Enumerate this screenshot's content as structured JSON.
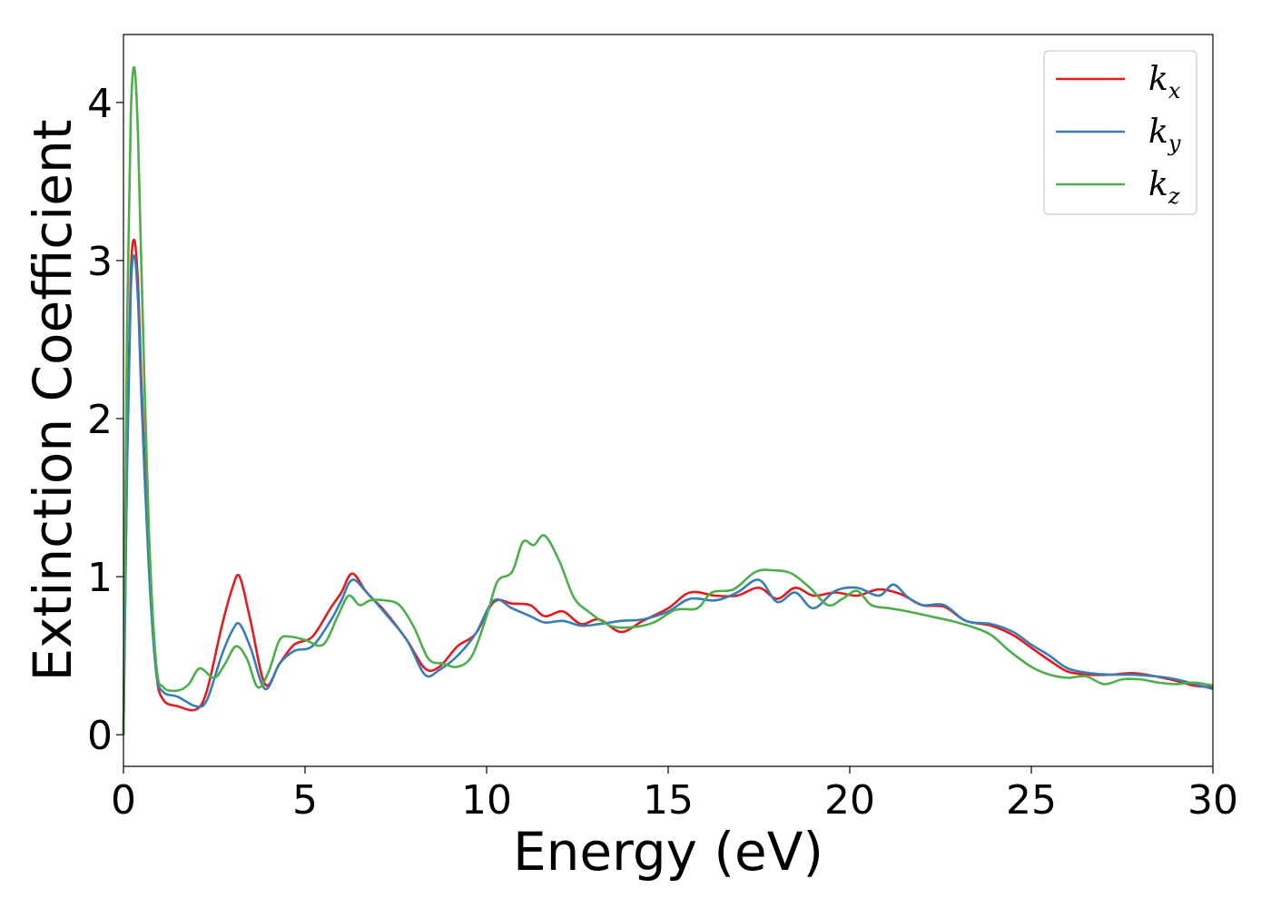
{
  "chart_data": {
    "type": "line",
    "title": "",
    "xlabel": "Energy (eV)",
    "ylabel": "Extinction Coefficient",
    "xlim": [
      0,
      30
    ],
    "ylim": [
      -0.2,
      4.43
    ],
    "xticks": [
      0,
      5,
      10,
      15,
      20,
      25,
      30
    ],
    "xtick_labels": [
      "0",
      "5",
      "10",
      "15",
      "20",
      "25",
      "30"
    ],
    "yticks": [
      0,
      1,
      2,
      3,
      4
    ],
    "ytick_labels": [
      "0",
      "1",
      "2",
      "3",
      "4"
    ],
    "grid": false,
    "legend_position": "top-right",
    "series": [
      {
        "name": "k",
        "subscript": "x",
        "color": "#e41a1c",
        "x": [
          0,
          0.1,
          0.2,
          0.3,
          0.4,
          0.5,
          0.7,
          0.9,
          1.1,
          1.5,
          2.0,
          2.3,
          2.7,
          3.0,
          3.2,
          3.5,
          3.9,
          4.3,
          4.7,
          5.2,
          5.7,
          6.0,
          6.3,
          6.7,
          7.2,
          7.8,
          8.3,
          8.7,
          9.2,
          9.7,
          10.2,
          10.7,
          11.2,
          11.6,
          12.1,
          12.6,
          13.1,
          13.7,
          14.3,
          15.0,
          15.6,
          16.3,
          16.9,
          17.5,
          18.0,
          18.5,
          19.0,
          19.6,
          20.2,
          20.8,
          21.4,
          22.0,
          22.6,
          23.2,
          23.9,
          24.5,
          25.0,
          25.5,
          26.0,
          26.6,
          27.2,
          27.8,
          28.4,
          29.0,
          29.5,
          30.0
        ],
        "values": [
          0.0,
          1.8,
          2.9,
          3.13,
          2.85,
          2.2,
          1.1,
          0.4,
          0.22,
          0.18,
          0.16,
          0.28,
          0.68,
          0.93,
          1.0,
          0.72,
          0.32,
          0.45,
          0.57,
          0.62,
          0.8,
          0.9,
          1.02,
          0.9,
          0.78,
          0.6,
          0.42,
          0.43,
          0.56,
          0.64,
          0.84,
          0.83,
          0.82,
          0.75,
          0.78,
          0.7,
          0.73,
          0.65,
          0.72,
          0.8,
          0.9,
          0.88,
          0.88,
          0.93,
          0.86,
          0.93,
          0.88,
          0.9,
          0.88,
          0.92,
          0.89,
          0.82,
          0.81,
          0.72,
          0.69,
          0.63,
          0.55,
          0.47,
          0.4,
          0.38,
          0.38,
          0.39,
          0.37,
          0.34,
          0.31,
          0.3
        ]
      },
      {
        "name": "k",
        "subscript": "y",
        "color": "#377eb8",
        "x": [
          0,
          0.1,
          0.2,
          0.3,
          0.4,
          0.5,
          0.7,
          0.9,
          1.1,
          1.5,
          2.0,
          2.3,
          2.7,
          3.0,
          3.2,
          3.5,
          3.9,
          4.3,
          4.7,
          5.2,
          5.7,
          6.0,
          6.3,
          6.7,
          7.2,
          7.8,
          8.3,
          8.7,
          9.2,
          9.7,
          10.2,
          10.7,
          11.2,
          11.6,
          12.1,
          12.6,
          13.1,
          13.7,
          14.3,
          15.0,
          15.6,
          16.3,
          16.9,
          17.5,
          18.0,
          18.5,
          19.0,
          19.6,
          20.2,
          20.8,
          21.2,
          21.6,
          22.0,
          22.6,
          23.2,
          23.9,
          24.5,
          25.0,
          25.5,
          26.0,
          26.6,
          27.2,
          27.8,
          28.4,
          29.0,
          29.5,
          30.0
        ],
        "values": [
          0.0,
          1.7,
          2.8,
          3.03,
          2.75,
          2.1,
          1.05,
          0.4,
          0.27,
          0.24,
          0.18,
          0.22,
          0.5,
          0.66,
          0.7,
          0.55,
          0.29,
          0.45,
          0.53,
          0.56,
          0.72,
          0.85,
          0.98,
          0.9,
          0.77,
          0.6,
          0.38,
          0.41,
          0.5,
          0.64,
          0.85,
          0.8,
          0.75,
          0.71,
          0.72,
          0.69,
          0.7,
          0.72,
          0.73,
          0.78,
          0.86,
          0.85,
          0.9,
          0.98,
          0.84,
          0.9,
          0.8,
          0.91,
          0.93,
          0.88,
          0.95,
          0.87,
          0.82,
          0.82,
          0.72,
          0.7,
          0.65,
          0.57,
          0.5,
          0.42,
          0.39,
          0.38,
          0.38,
          0.37,
          0.35,
          0.32,
          0.29
        ]
      },
      {
        "name": "k",
        "subscript": "z",
        "color": "#4daf4a",
        "x": [
          0,
          0.1,
          0.2,
          0.3,
          0.4,
          0.5,
          0.7,
          0.9,
          1.1,
          1.5,
          1.8,
          2.1,
          2.5,
          2.8,
          3.1,
          3.4,
          3.7,
          4.0,
          4.3,
          4.6,
          5.0,
          5.5,
          5.9,
          6.2,
          6.5,
          6.8,
          7.2,
          7.6,
          8.0,
          8.4,
          8.8,
          9.2,
          9.6,
          10.0,
          10.3,
          10.7,
          11.0,
          11.3,
          11.6,
          12.0,
          12.4,
          12.8,
          13.4,
          14.0,
          14.6,
          15.2,
          15.8,
          16.2,
          16.8,
          17.4,
          17.9,
          18.4,
          18.9,
          19.4,
          19.8,
          20.2,
          20.6,
          21.1,
          21.6,
          22.2,
          22.8,
          23.4,
          23.9,
          24.4,
          25.0,
          25.5,
          26.0,
          26.5,
          27.0,
          27.5,
          28.0,
          28.5,
          29.0,
          29.5,
          30.0
        ],
        "values": [
          0.0,
          2.6,
          3.9,
          4.22,
          3.8,
          2.9,
          1.3,
          0.45,
          0.3,
          0.28,
          0.32,
          0.42,
          0.36,
          0.45,
          0.56,
          0.48,
          0.3,
          0.4,
          0.6,
          0.62,
          0.6,
          0.57,
          0.75,
          0.88,
          0.82,
          0.85,
          0.85,
          0.82,
          0.68,
          0.48,
          0.45,
          0.43,
          0.5,
          0.75,
          0.97,
          1.03,
          1.22,
          1.2,
          1.26,
          1.1,
          0.87,
          0.78,
          0.69,
          0.68,
          0.71,
          0.79,
          0.8,
          0.9,
          0.92,
          1.03,
          1.04,
          1.02,
          0.93,
          0.82,
          0.86,
          0.91,
          0.82,
          0.8,
          0.78,
          0.75,
          0.72,
          0.68,
          0.63,
          0.53,
          0.43,
          0.38,
          0.36,
          0.37,
          0.32,
          0.35,
          0.35,
          0.33,
          0.32,
          0.33,
          0.31
        ]
      }
    ]
  }
}
